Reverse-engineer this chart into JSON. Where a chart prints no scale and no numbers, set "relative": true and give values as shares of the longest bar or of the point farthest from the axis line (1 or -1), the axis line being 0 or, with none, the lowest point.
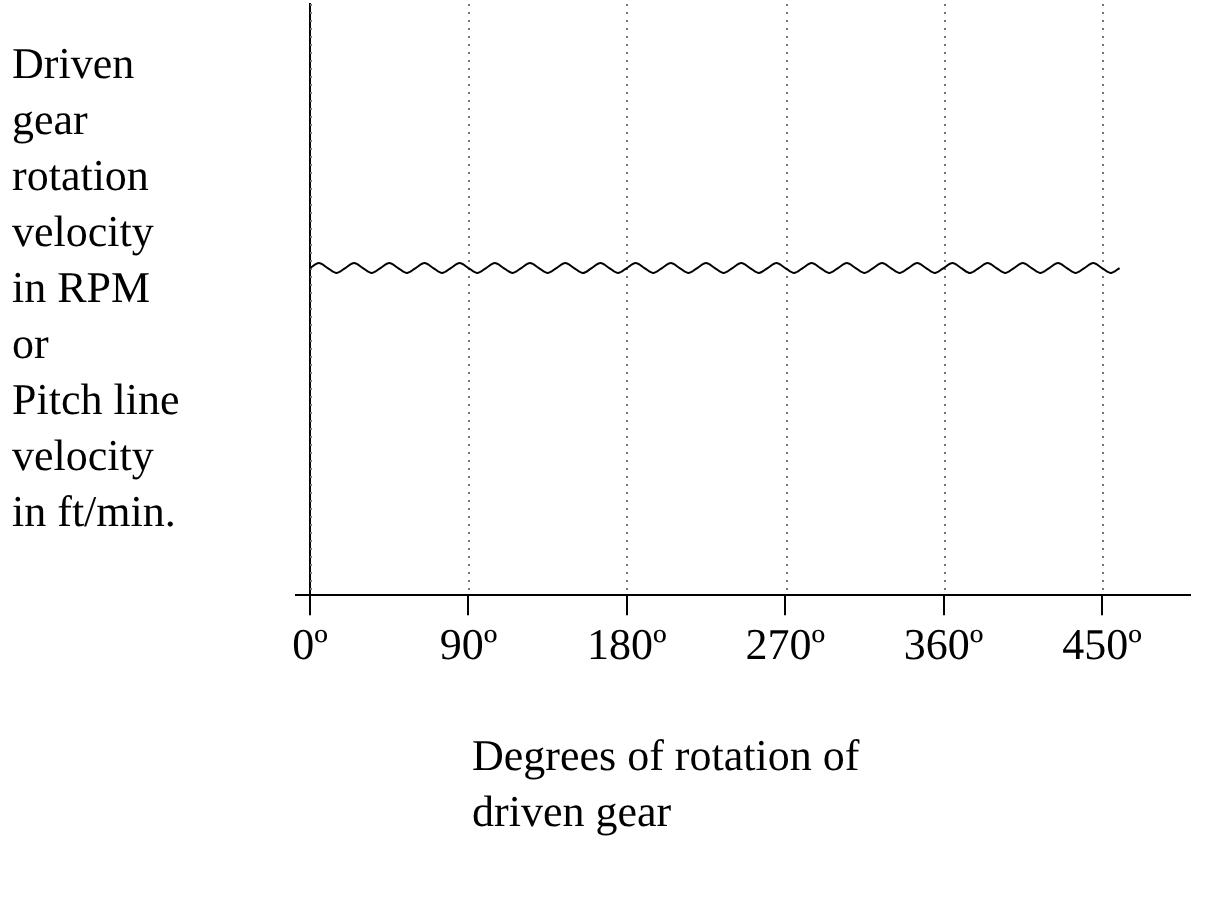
{
  "chart_data": {
    "type": "line",
    "relative": true,
    "xlabel": "Degrees of rotation of\ndriven gear",
    "ylabel": "Driven\ngear\nrotation\nvelocity\nin RPM\nor\nPitch line\nvelocity\nin ft/min.",
    "xlim": [
      -8,
      500
    ],
    "xticks": [
      {
        "value": 0,
        "label": "0º"
      },
      {
        "value": 90,
        "label": "90º"
      },
      {
        "value": 180,
        "label": "180º"
      },
      {
        "value": 270,
        "label": "270º"
      },
      {
        "value": 360,
        "label": "360º"
      },
      {
        "value": 450,
        "label": "450º"
      }
    ],
    "grid": "x",
    "marker": "none",
    "line_style": "solid",
    "series": [
      {
        "color": "#000000",
        "x": [
          0,
          5,
          10,
          15,
          20,
          25,
          30,
          35,
          40,
          45,
          50,
          55,
          60,
          65,
          70,
          75,
          80,
          85,
          90,
          95,
          100,
          105,
          110,
          115,
          120,
          125,
          130,
          135,
          140,
          145,
          150,
          155,
          160,
          165,
          170,
          175,
          180,
          185,
          190,
          195,
          200,
          205,
          210,
          215,
          220,
          225,
          230,
          235,
          240,
          245,
          250,
          255,
          260,
          265,
          270,
          275,
          280,
          285,
          290,
          295,
          300,
          305,
          310,
          315,
          320,
          325,
          330,
          335,
          340,
          345,
          350,
          355,
          360,
          365,
          370,
          375,
          380,
          385,
          390,
          395,
          400,
          405,
          410,
          415,
          420,
          425,
          430,
          435,
          440,
          445,
          450,
          455,
          460
        ],
        "values": [
          0.985,
          1,
          0.985,
          0.97,
          0.985,
          1,
          0.985,
          0.97,
          0.985,
          1,
          0.985,
          0.97,
          0.985,
          1,
          0.985,
          0.97,
          0.985,
          1,
          0.985,
          0.97,
          0.985,
          1,
          0.985,
          0.97,
          0.985,
          1,
          0.985,
          0.97,
          0.985,
          1,
          0.985,
          0.97,
          0.985,
          1,
          0.985,
          0.97,
          0.985,
          1,
          0.985,
          0.97,
          0.985,
          1,
          0.985,
          0.97,
          0.985,
          1,
          0.985,
          0.97,
          0.985,
          1,
          0.985,
          0.97,
          0.985,
          1,
          0.985,
          0.97,
          0.985,
          1,
          0.985,
          0.97,
          0.985,
          1,
          0.985,
          0.97,
          0.985,
          1,
          0.985,
          0.97,
          0.985,
          1,
          0.985,
          0.97,
          0.985,
          1,
          0.985,
          0.97,
          0.985,
          1,
          0.985,
          0.97,
          0.985,
          1,
          0.985,
          0.97,
          0.985,
          1,
          0.985,
          0.97,
          0.985,
          1,
          0.985,
          0.97,
          0.985
        ]
      }
    ]
  }
}
